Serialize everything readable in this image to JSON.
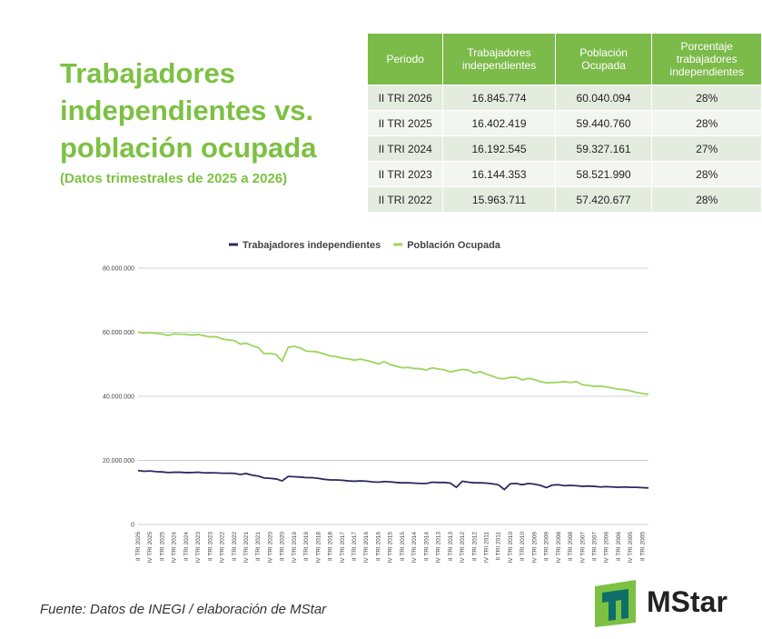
{
  "header": {
    "title": "Trabajadores independientes vs. población ocupada",
    "subtitle": "(Datos trimestrales de 2025 a 2026)"
  },
  "table": {
    "header": [
      "Periodo",
      "Trabajadores independientes",
      "Población Ocupada",
      "Porcentaje trabajadores independientes"
    ],
    "rows": [
      [
        "II TRI 2026",
        "16.845.774",
        "60.040.094",
        "28%"
      ],
      [
        "II TRI 2025",
        "16.402.419",
        "59.440.760",
        "28%"
      ],
      [
        "II TRI 2024",
        "16.192.545",
        "59.327.161",
        "27%"
      ],
      [
        "II TRI 2023",
        "16.144.353",
        "58.521.990",
        "28%"
      ],
      [
        "II TRI 2022",
        "15.963.711",
        "57.420.677",
        "28%"
      ]
    ]
  },
  "chart_data": {
    "type": "line",
    "categories": [
      "II TRI 2026",
      null,
      "IV TRI 2025",
      null,
      "II TRI 2025",
      null,
      "IV TRI 2024",
      null,
      "II TRI 2024",
      null,
      "IV TRI 2023",
      null,
      "II TRI 2023",
      null,
      "IV TRI 2022",
      null,
      "II TRI 2022",
      null,
      "IV TRI 2021",
      null,
      "II TRI 2021",
      null,
      "IV TRI 2020",
      null,
      "II TRI 2020",
      null,
      "IV TRI 2019",
      null,
      "II TRI 2019",
      null,
      "IV TRI 2018",
      null,
      "II TRI 2018",
      null,
      "IV TRI 2017",
      null,
      "II TRI 2017",
      null,
      "IV TRI 2016",
      null,
      "II TRI 2016",
      null,
      "IV TRI 2015",
      null,
      "II TRI 2015",
      null,
      "IV TRI 2014",
      null,
      "II TRI 2014",
      null,
      "IV TRI 2013",
      null,
      "II TRI 2013",
      null,
      "IV TRI 2012",
      null,
      "II TRI 2012",
      null,
      "IV TRI 2011",
      null,
      "II TRI 2011",
      null,
      "IV TRI 2010",
      null,
      "II TRI 2010",
      null,
      "IV TRI 2009",
      null,
      "II TRI 2009",
      null,
      "IV TRI 2008",
      null,
      "II TRI 2008",
      null,
      "IV TRI 2007",
      null,
      "II TRI 2007",
      null,
      "IV TRI 2006",
      null,
      "II TRI 2006",
      null,
      "IV TRI 2005",
      null,
      "II TRI 2005",
      null
    ],
    "series": [
      {
        "name": "Trabajadores independientes",
        "color": "#2b2a5e",
        "values": [
          16845774,
          16600000,
          16700000,
          16500000,
          16402419,
          16200000,
          16300000,
          16300000,
          16192545,
          16200000,
          16300000,
          16100000,
          16144353,
          16100000,
          16000000,
          16000000,
          15963711,
          15600000,
          15900000,
          15400000,
          15100000,
          14500000,
          14400000,
          14200000,
          13600000,
          15000000,
          14900000,
          14800000,
          14600000,
          14600000,
          14400000,
          14100000,
          13900000,
          13900000,
          13800000,
          13600000,
          13500000,
          13600000,
          13500000,
          13300000,
          13200000,
          13400000,
          13300000,
          13100000,
          13000000,
          13000000,
          12900000,
          12800000,
          12800000,
          13200000,
          13100000,
          13100000,
          12900000,
          11600000,
          13500000,
          13200000,
          13000000,
          13000000,
          12900000,
          12700000,
          12400000,
          10900000,
          12700000,
          12800000,
          12400000,
          12800000,
          12600000,
          12200000,
          11500000,
          12300000,
          12400000,
          12100000,
          12200000,
          12100000,
          11900000,
          12000000,
          11900000,
          11700000,
          11800000,
          11700000,
          11600000,
          11700000,
          11600000,
          11600000,
          11500000,
          11400000
        ]
      },
      {
        "name": "Población Ocupada",
        "color": "#9ad65a",
        "values": [
          60040094,
          59700000,
          59900000,
          59600000,
          59440760,
          59000000,
          59500000,
          59400000,
          59327161,
          59100000,
          59300000,
          58900000,
          58521990,
          58600000,
          57900000,
          57600000,
          57420677,
          56300000,
          56600000,
          55800000,
          55200000,
          53300000,
          53400000,
          53000000,
          51000000,
          55300000,
          55600000,
          55100000,
          54100000,
          54000000,
          53800000,
          53200000,
          52600000,
          52400000,
          51900000,
          51700000,
          51300000,
          51600000,
          51200000,
          50700000,
          50100000,
          50800000,
          49900000,
          49400000,
          48900000,
          49000000,
          48700000,
          48600000,
          48200000,
          48900000,
          48500000,
          48300000,
          47600000,
          48000000,
          48400000,
          48200000,
          47300000,
          47700000,
          46900000,
          46300000,
          45600000,
          45500000,
          45900000,
          45900000,
          45100000,
          45600000,
          45200000,
          44600000,
          44200000,
          44300000,
          44400000,
          44600000,
          44300000,
          44600000,
          43600000,
          43400000,
          43100000,
          43200000,
          42900000,
          42600000,
          42200000,
          42100000,
          41700000,
          41200000,
          40900000,
          40600000
        ]
      }
    ],
    "ylim": [
      0,
      80000000
    ],
    "yticks": [
      0,
      {
        "value": 20000000,
        "label": "20.000.000"
      },
      {
        "value": 40000000,
        "label": "40.000.000"
      },
      {
        "value": 60000000,
        "label": "60.000.000"
      },
      {
        "value": 80000000,
        "label": "80.000.000"
      }
    ],
    "grid": true,
    "legend": "top"
  },
  "footer": {
    "source": "Fuente: Datos de INEGI / elaboración de MStar",
    "logo": "MStar"
  }
}
